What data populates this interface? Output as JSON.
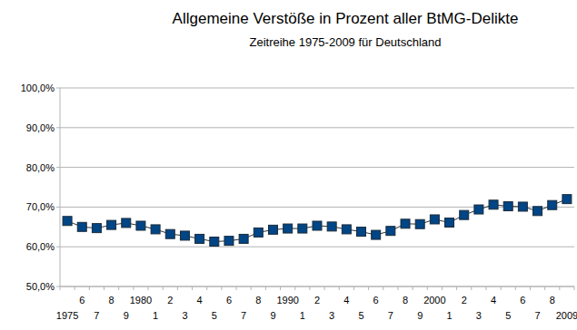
{
  "chart_data": {
    "type": "line",
    "title": "Allgemeine Verstöße in Prozent aller BtMG-Delikte",
    "subtitle": "Zeitreihe 1975-2009 für Deutschland",
    "categories": [
      "1975",
      "6",
      "7",
      "8",
      "9",
      "1980",
      "1",
      "2",
      "3",
      "4",
      "5",
      "6",
      "7",
      "8",
      "9",
      "1990",
      "1",
      "2",
      "3",
      "4",
      "5",
      "6",
      "7",
      "8",
      "9",
      "2000",
      "1",
      "2",
      "3",
      "4",
      "5",
      "6",
      "7",
      "8",
      "2009"
    ],
    "values": [
      66.5,
      65.0,
      64.7,
      65.5,
      66.0,
      65.3,
      64.4,
      63.2,
      62.8,
      62.0,
      61.3,
      61.5,
      62.0,
      63.6,
      64.3,
      64.6,
      64.6,
      65.3,
      65.1,
      64.4,
      63.8,
      63.0,
      64.0,
      65.8,
      65.7,
      66.9,
      66.1,
      68.0,
      69.4,
      70.6,
      70.2,
      70.1,
      69.0,
      70.5,
      72.0
    ],
    "color": "#004586",
    "marker": "square",
    "ylim": [
      50,
      100
    ],
    "yticks": [
      {
        "value": 50,
        "label": "50,0%"
      },
      {
        "value": 60,
        "label": "60,0%"
      },
      {
        "value": 70,
        "label": "70,0%"
      },
      {
        "value": 80,
        "label": "80,0%"
      },
      {
        "value": 90,
        "label": "90,0%"
      },
      {
        "value": 100,
        "label": "100,0%"
      }
    ],
    "grid": true
  }
}
